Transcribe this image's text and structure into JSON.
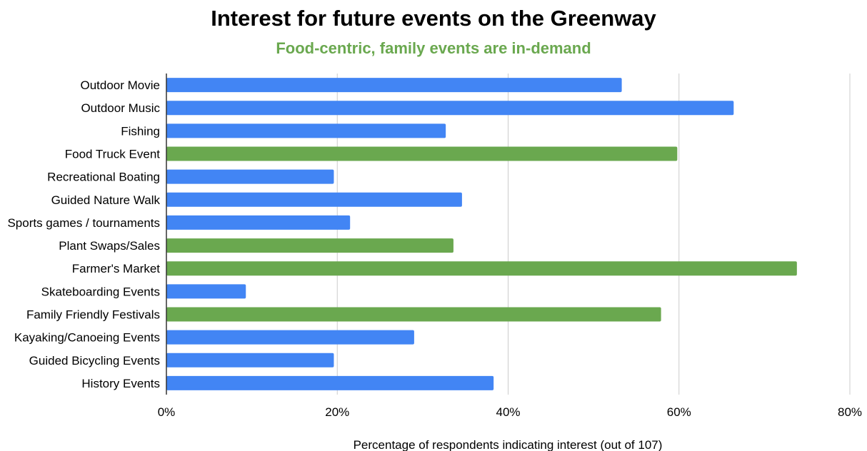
{
  "chart_data": {
    "type": "bar",
    "orientation": "horizontal",
    "title": "Interest for future events on the Greenway",
    "subtitle": "Food-centric, family events are in-demand",
    "xlabel": "Percentage of respondents indicating interest (out of 107)",
    "ylabel": "",
    "xlim": [
      0,
      80
    ],
    "x_ticks": [
      "0%",
      "20%",
      "40%",
      "60%",
      "80%"
    ],
    "x_tick_values": [
      0,
      20,
      40,
      60,
      80
    ],
    "grid": "vertical",
    "legend": "none",
    "categories": [
      "Outdoor Movie",
      "Outdoor Music",
      "Fishing",
      "Food Truck Event",
      "Recreational Boating",
      "Guided Nature Walk",
      "Sports games / tournaments",
      "Plant Swaps/Sales",
      "Farmer's Market",
      "Skateboarding Events",
      "Family Friendly Festivals",
      "Kayaking/Canoeing Events",
      "Guided Bicycling Events",
      "History Events"
    ],
    "values": [
      53.3,
      66.4,
      32.7,
      59.8,
      19.6,
      34.6,
      21.5,
      33.6,
      73.8,
      9.3,
      57.9,
      29.0,
      19.6,
      38.3
    ],
    "highlighted": [
      false,
      false,
      false,
      true,
      false,
      false,
      false,
      true,
      true,
      false,
      true,
      false,
      false,
      false
    ],
    "colors": {
      "default_bar": "#4285f4",
      "highlight_bar": "#6aa84f",
      "subtitle": "#6aa84f",
      "grid": "#cccccc",
      "axis": "#333333",
      "text": "#000000"
    }
  }
}
